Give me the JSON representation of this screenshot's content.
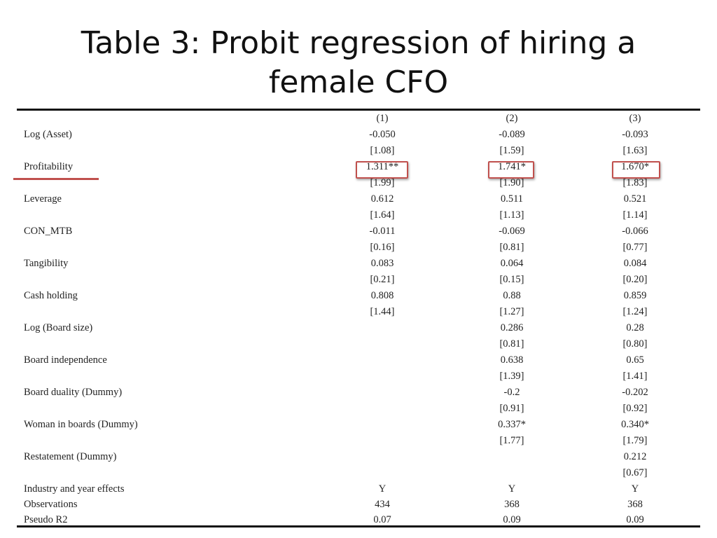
{
  "slide": {
    "title_line1": "Table 3: Probit regression of hiring a",
    "title_line2": "female CFO"
  },
  "table": {
    "columns": [
      "(1)",
      "(2)",
      "(3)"
    ],
    "rows": [
      {
        "label": "Log (Asset)",
        "values": [
          "-0.050",
          "-0.089",
          "-0.093"
        ],
        "se": [
          "[1.08]",
          "[1.59]",
          "[1.63]"
        ]
      },
      {
        "label": "Profitability",
        "values": [
          "1.311**",
          "1.741*",
          "1.670*"
        ],
        "se": [
          "[1.99]",
          "[1.90]",
          "[1.83]"
        ]
      },
      {
        "label": "Leverage",
        "values": [
          "0.612",
          "0.511",
          "0.521"
        ],
        "se": [
          "[1.64]",
          "[1.13]",
          "[1.14]"
        ]
      },
      {
        "label": "CON_MTB",
        "values": [
          "-0.011",
          "-0.069",
          "-0.066"
        ],
        "se": [
          "[0.16]",
          "[0.81]",
          "[0.77]"
        ]
      },
      {
        "label": "Tangibility",
        "values": [
          "0.083",
          "0.064",
          "0.084"
        ],
        "se": [
          "[0.21]",
          "[0.15]",
          "[0.20]"
        ]
      },
      {
        "label": "Cash holding",
        "values": [
          "0.808",
          "0.88",
          "0.859"
        ],
        "se": [
          "[1.44]",
          "[1.27]",
          "[1.24]"
        ]
      },
      {
        "label": "Log (Board size)",
        "values": [
          "",
          "0.286",
          "0.28"
        ],
        "se": [
          "",
          "[0.81]",
          "[0.80]"
        ]
      },
      {
        "label": "Board independence",
        "values": [
          "",
          "0.638",
          "0.65"
        ],
        "se": [
          "",
          "[1.39]",
          "[1.41]"
        ]
      },
      {
        "label": "Board duality (Dummy)",
        "values": [
          "",
          "-0.2",
          "-0.202"
        ],
        "se": [
          "",
          "[0.91]",
          "[0.92]"
        ]
      },
      {
        "label": "Woman in boards (Dummy)",
        "values": [
          "",
          "0.337*",
          "0.340*"
        ],
        "se": [
          "",
          "[1.77]",
          "[1.79]"
        ]
      },
      {
        "label": "Restatement (Dummy)",
        "values": [
          "",
          "",
          "0.212"
        ],
        "se": [
          "",
          "",
          "[0.67]"
        ]
      }
    ],
    "footer": [
      {
        "label": "Industry and year effects",
        "values": [
          "Y",
          "Y",
          "Y"
        ]
      },
      {
        "label": "Observations",
        "values": [
          "434",
          "368",
          "368"
        ]
      },
      {
        "label": "Pseudo R2",
        "values": [
          "0.07",
          "0.09",
          "0.09"
        ]
      }
    ]
  },
  "colors": {
    "highlight": "#c0504d",
    "rule": "#111111"
  }
}
